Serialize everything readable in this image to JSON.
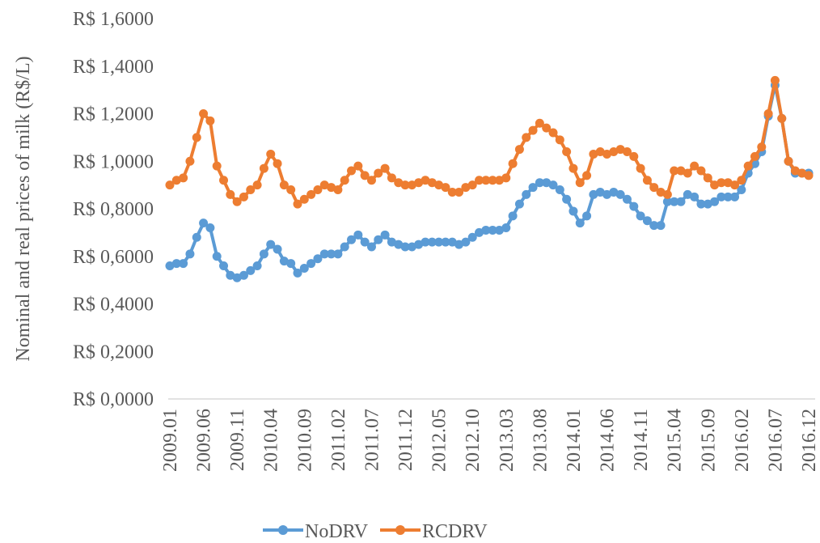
{
  "chart_data": {
    "type": "line",
    "y_label": "Nominal and real prices of milk (R$/L)",
    "categories": [
      "2009.01",
      null,
      null,
      null,
      null,
      "2009.06",
      null,
      null,
      null,
      null,
      "2009.11",
      null,
      null,
      null,
      null,
      "2010.04",
      null,
      null,
      null,
      null,
      "2010.09",
      null,
      null,
      null,
      null,
      "2011.02",
      null,
      null,
      null,
      null,
      "2011.07",
      null,
      null,
      null,
      null,
      "2011.12",
      null,
      null,
      null,
      null,
      "2012.05",
      null,
      null,
      null,
      null,
      "2012.10",
      null,
      null,
      null,
      null,
      "2013.03",
      null,
      null,
      null,
      null,
      "2013.08",
      null,
      null,
      null,
      null,
      "2014.01",
      null,
      null,
      null,
      null,
      "2014.06",
      null,
      null,
      null,
      null,
      "2014.11",
      null,
      null,
      null,
      null,
      "2015.04",
      null,
      null,
      null,
      null,
      "2015.09",
      null,
      null,
      null,
      null,
      "2016.02",
      null,
      null,
      null,
      null,
      "2016.07",
      null,
      null,
      null,
      null,
      "2016.12"
    ],
    "series": [
      {
        "name": "NoDRV",
        "color": "#5b9bd5",
        "values": [
          0.56,
          0.57,
          0.57,
          0.61,
          0.68,
          0.74,
          0.72,
          0.6,
          0.56,
          0.52,
          0.51,
          0.52,
          0.54,
          0.56,
          0.61,
          0.65,
          0.63,
          0.58,
          0.57,
          0.53,
          0.55,
          0.57,
          0.59,
          0.61,
          0.61,
          0.61,
          0.64,
          0.67,
          0.69,
          0.66,
          0.64,
          0.67,
          0.69,
          0.66,
          0.65,
          0.64,
          0.64,
          0.65,
          0.66,
          0.66,
          0.66,
          0.66,
          0.66,
          0.65,
          0.66,
          0.68,
          0.7,
          0.71,
          0.71,
          0.71,
          0.72,
          0.77,
          0.82,
          0.86,
          0.89,
          0.91,
          0.91,
          0.9,
          0.88,
          0.84,
          0.79,
          0.74,
          0.77,
          0.86,
          0.87,
          0.86,
          0.87,
          0.86,
          0.84,
          0.81,
          0.77,
          0.75,
          0.73,
          0.73,
          0.83,
          0.83,
          0.83,
          0.86,
          0.85,
          0.82,
          0.82,
          0.83,
          0.85,
          0.85,
          0.85,
          0.88,
          0.95,
          0.99,
          1.04,
          1.19,
          1.32,
          1.18,
          1.0,
          0.95,
          0.95,
          0.95
        ]
      },
      {
        "name": "RCDRV",
        "color": "#ed7d31",
        "values": [
          0.9,
          0.92,
          0.93,
          1.0,
          1.1,
          1.2,
          1.17,
          0.98,
          0.92,
          0.86,
          0.83,
          0.85,
          0.88,
          0.9,
          0.97,
          1.03,
          0.99,
          0.9,
          0.88,
          0.82,
          0.84,
          0.86,
          0.88,
          0.9,
          0.89,
          0.88,
          0.92,
          0.96,
          0.98,
          0.94,
          0.92,
          0.95,
          0.97,
          0.93,
          0.91,
          0.9,
          0.9,
          0.91,
          0.92,
          0.91,
          0.9,
          0.89,
          0.87,
          0.87,
          0.89,
          0.9,
          0.92,
          0.92,
          0.92,
          0.92,
          0.93,
          0.99,
          1.05,
          1.1,
          1.13,
          1.16,
          1.14,
          1.12,
          1.09,
          1.04,
          0.97,
          0.91,
          0.94,
          1.03,
          1.04,
          1.03,
          1.04,
          1.05,
          1.04,
          1.02,
          0.97,
          0.92,
          0.89,
          0.87,
          0.86,
          0.96,
          0.96,
          0.95,
          0.98,
          0.96,
          0.93,
          0.9,
          0.91,
          0.91,
          0.9,
          0.92,
          0.98,
          1.02,
          1.06,
          1.2,
          1.34,
          1.18,
          1.0,
          0.96,
          0.95,
          0.94
        ]
      }
    ],
    "ylim": [
      0,
      1.6
    ],
    "yticks": [
      {
        "value": 0,
        "label": "R$ 0,0000"
      },
      {
        "value": 0.2,
        "label": "R$ 0,2000"
      },
      {
        "value": 0.4,
        "label": "R$ 0,4000"
      },
      {
        "value": 0.6,
        "label": "R$ 0,6000"
      },
      {
        "value": 0.8,
        "label": "R$ 0,8000"
      },
      {
        "value": 1.0,
        "label": "R$ 1,0000"
      },
      {
        "value": 1.2,
        "label": "R$ 1,2000"
      },
      {
        "value": 1.4,
        "label": "R$ 1,4000"
      },
      {
        "value": 1.6,
        "label": "R$ 1,6000"
      }
    ],
    "legend": "bottom"
  }
}
